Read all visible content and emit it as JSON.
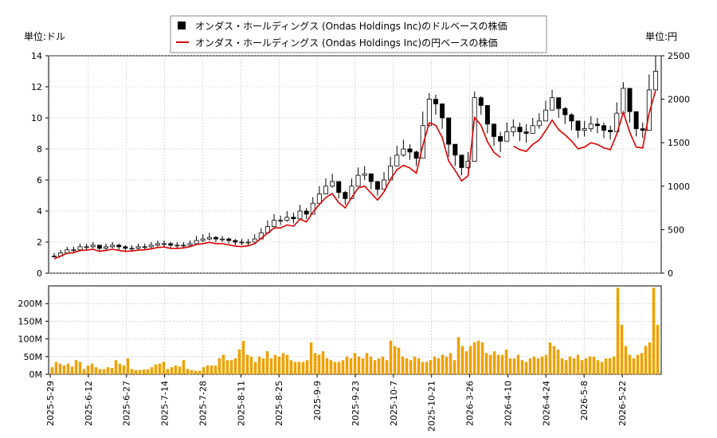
{
  "units": {
    "left": "単位:ドル",
    "right": "単位:円"
  },
  "legend": {
    "usd": "オンダス・ホールディングス (Ondas Holdings Inc)のドルベースの株価",
    "jpy": "オンダス・ホールディングス (Ondas Holdings Inc)の円ベースの株価"
  },
  "colors": {
    "candle": "#000000",
    "jpy_line": "#dd0000",
    "volume": "#f0a000",
    "grid": "#bbbbbb"
  },
  "chart_data": {
    "type": "line",
    "x_tick_labels": [
      "2025-5-29",
      "2025-6-12",
      "2025-6-27",
      "2025-7-14",
      "2025-7-28",
      "2025-8-11",
      "2025-8-25",
      "2025-9-9",
      "2025-9-23",
      "2025-10-7",
      "2025-10-21",
      "2026-3-26",
      "2026-4-10",
      "2026-4-24",
      "2026-5-8",
      "2026-5-22"
    ],
    "price_axis": {
      "left_ticks": [
        "0",
        "2",
        "4",
        "6",
        "8",
        "10",
        "12",
        "14"
      ],
      "left_range": [
        0,
        14
      ],
      "right_ticks": [
        "0",
        "500",
        "1000",
        "1500",
        "2000",
        "2500"
      ],
      "right_range": [
        0,
        2500
      ]
    },
    "volume_axis": {
      "ticks": [
        "0M",
        "50M",
        "100M",
        "150M",
        "200M"
      ],
      "range": [
        0,
        250
      ]
    },
    "series": [
      {
        "name": "オンダス・ホールディングス (Ondas Holdings Inc)のドルベースの株価",
        "unit": "USD",
        "style": "candlestick",
        "close": [
          1.1,
          1.3,
          1.5,
          1.5,
          1.7,
          1.7,
          1.8,
          1.6,
          1.7,
          1.8,
          1.7,
          1.6,
          1.6,
          1.7,
          1.7,
          1.8,
          1.9,
          1.9,
          1.8,
          1.8,
          1.8,
          1.9,
          2.1,
          2.2,
          2.3,
          2.2,
          2.2,
          2.1,
          2.0,
          2.0,
          2.0,
          2.2,
          2.6,
          3.0,
          3.4,
          3.4,
          3.6,
          3.5,
          4.0,
          3.8,
          4.5,
          5.1,
          5.6,
          5.9,
          5.2,
          4.8,
          5.6,
          6.3,
          6.4,
          5.9,
          5.4,
          6.0,
          6.9,
          7.6,
          8.0,
          7.8,
          7.4,
          9.5,
          11.2,
          10.9,
          10.0,
          8.3,
          7.6,
          6.8,
          7.2,
          11.3,
          10.8,
          9.6,
          8.8,
          8.5,
          9.1,
          9.4,
          9.1,
          9.0,
          9.5,
          9.8,
          10.5,
          11.3,
          10.6,
          10.2,
          9.8,
          9.2,
          9.3,
          9.6,
          9.5,
          9.2,
          9.1,
          10.3,
          11.9,
          10.4,
          9.3,
          9.2,
          11.8,
          13.0
        ],
        "high": [
          1.3,
          1.5,
          1.7,
          1.7,
          1.9,
          1.9,
          2.0,
          1.8,
          1.9,
          2.0,
          1.9,
          1.8,
          1.8,
          1.9,
          1.9,
          2.0,
          2.1,
          2.1,
          2.0,
          2.0,
          2.0,
          2.1,
          2.4,
          2.5,
          2.6,
          2.4,
          2.4,
          2.3,
          2.2,
          2.2,
          2.2,
          2.5,
          2.9,
          3.4,
          3.8,
          3.7,
          4.0,
          3.9,
          4.4,
          4.2,
          4.9,
          5.6,
          6.1,
          6.4,
          5.7,
          5.3,
          6.1,
          6.8,
          6.9,
          6.4,
          5.9,
          6.5,
          7.5,
          8.2,
          8.6,
          8.3,
          7.9,
          10.4,
          11.6,
          11.5,
          10.9,
          9.0,
          8.2,
          7.3,
          7.8,
          11.7,
          11.4,
          10.3,
          9.4,
          9.1,
          9.7,
          9.9,
          9.7,
          9.6,
          10.0,
          10.3,
          11.1,
          11.8,
          11.1,
          10.7,
          10.3,
          9.7,
          9.8,
          10.1,
          10.0,
          9.7,
          9.5,
          11.0,
          12.3,
          11.0,
          9.9,
          9.7,
          12.8,
          14.0
        ],
        "low": [
          1.0,
          1.1,
          1.3,
          1.3,
          1.5,
          1.5,
          1.6,
          1.4,
          1.5,
          1.6,
          1.5,
          1.4,
          1.4,
          1.5,
          1.5,
          1.6,
          1.7,
          1.7,
          1.6,
          1.6,
          1.6,
          1.7,
          1.9,
          2.0,
          2.1,
          2.0,
          2.0,
          1.9,
          1.8,
          1.8,
          1.8,
          2.0,
          2.3,
          2.7,
          3.1,
          3.1,
          3.3,
          3.2,
          3.6,
          3.5,
          4.1,
          4.7,
          5.2,
          5.5,
          4.8,
          4.4,
          5.2,
          5.9,
          6.0,
          5.4,
          5.0,
          5.5,
          6.4,
          7.1,
          7.5,
          7.3,
          6.9,
          8.9,
          10.5,
          10.2,
          9.3,
          7.5,
          6.9,
          6.3,
          6.7,
          10.8,
          10.2,
          9.0,
          8.2,
          7.8,
          8.5,
          8.8,
          8.5,
          8.4,
          9.0,
          9.3,
          9.9,
          10.7,
          10.0,
          9.6,
          9.2,
          8.7,
          8.8,
          9.1,
          9.0,
          8.7,
          8.6,
          9.6,
          11.2,
          9.7,
          8.8,
          8.7,
          10.9,
          12.0
        ]
      },
      {
        "name": "オンダス・ホールディングス (Ondas Holdings Inc)の円ベースの株価",
        "unit": "JPY",
        "style": "line",
        "values": [
          165,
          195,
          230,
          235,
          260,
          265,
          275,
          250,
          262,
          275,
          262,
          250,
          255,
          265,
          268,
          280,
          295,
          300,
          285,
          285,
          290,
          305,
          330,
          340,
          355,
          340,
          340,
          325,
          310,
          305,
          315,
          340,
          400,
          460,
          520,
          520,
          555,
          540,
          620,
          590,
          700,
          790,
          870,
          915,
          810,
          750,
          870,
          980,
          1000,
          920,
          840,
          935,
          1080,
          1190,
          1240,
          1210,
          1150,
          1470,
          1730,
          1700,
          1560,
          1290,
          1180,
          1060,
          1120,
          1790,
          1700,
          1510,
          1390,
          1330,
          null,
          1460,
          1420,
          1400,
          1480,
          1530,
          1640,
          1760,
          1650,
          1590,
          1520,
          1430,
          1450,
          1500,
          1480,
          1440,
          1420,
          1600,
          1850,
          1620,
          1450,
          1440,
          1840,
          2100
        ]
      },
      {
        "name": "出来高",
        "unit": "M shares",
        "style": "bar",
        "values": [
          20,
          35,
          30,
          25,
          30,
          22,
          40,
          35,
          15,
          25,
          30,
          20,
          15,
          15,
          20,
          18,
          40,
          30,
          25,
          45,
          15,
          12,
          12,
          14,
          14,
          20,
          28,
          30,
          35,
          15,
          20,
          25,
          22,
          40,
          15,
          12,
          10,
          10,
          20,
          25,
          25,
          25,
          45,
          55,
          40,
          40,
          45,
          70,
          95,
          55,
          50,
          35,
          50,
          45,
          65,
          45,
          55,
          50,
          60,
          55,
          40,
          35,
          35,
          35,
          40,
          90,
          60,
          55,
          65,
          45,
          40,
          35,
          35,
          40,
          50,
          45,
          60,
          50,
          45,
          60,
          50,
          40,
          45,
          50,
          40,
          95,
          80,
          75,
          50,
          45,
          40,
          50,
          45,
          35,
          35,
          40,
          50,
          45,
          55,
          50,
          60,
          40,
          105,
          80,
          65,
          80,
          90,
          95,
          90,
          60,
          55,
          65,
          55,
          55,
          70,
          45,
          45,
          55,
          40,
          35,
          45,
          50,
          45,
          50,
          55,
          90,
          80,
          70,
          45,
          40,
          50,
          45,
          55,
          40,
          45,
          50,
          50,
          40,
          35,
          45,
          45,
          50,
          245,
          140,
          80,
          55,
          45,
          55,
          60,
          80,
          90,
          245,
          140
        ]
      }
    ]
  }
}
